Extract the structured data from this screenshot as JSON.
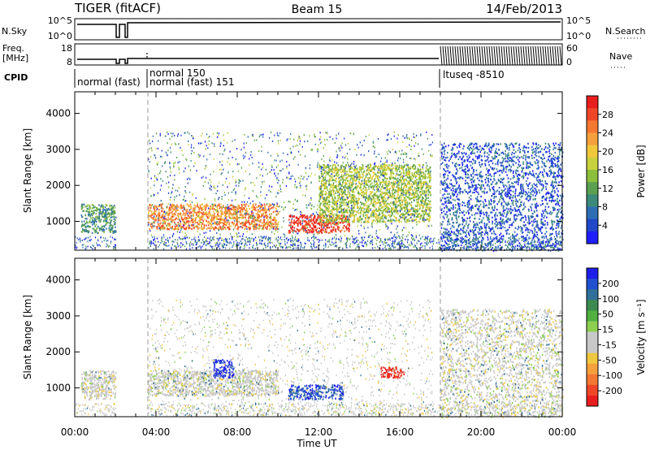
{
  "header": {
    "radar_name": "TIGER (fitACF)",
    "beam": "Beam 15",
    "date": "14/Feb/2013"
  },
  "strip_panels": {
    "left_labels": {
      "nsky": "N.Sky",
      "freq_line1": "Freq.",
      "freq_line2": "[MHz]",
      "cpid": "CPID"
    },
    "right_labels": {
      "nsearch": "N.Search",
      "nave": "Nave"
    },
    "noise_ticks_left": [
      "10^5",
      "10^0"
    ],
    "noise_ticks_right": [
      "10^5",
      "10^0"
    ],
    "freq_ticks": [
      "18",
      "8"
    ],
    "nave_ticks": [
      "60",
      "0"
    ],
    "cpid_labels": [
      "normal (fast)",
      "normal 150",
      "normal (fast) 151",
      "ltuseq -8510"
    ]
  },
  "time_axis": {
    "label": "Time UT",
    "ticks": [
      "00:00",
      "04:00",
      "08:00",
      "12:00",
      "16:00",
      "20:00",
      "00:00"
    ]
  },
  "colors": {
    "power_scale": [
      "#1e1eff",
      "#1f47c8",
      "#2e6eb4",
      "#3c8a7a",
      "#5aa050",
      "#8cbf3c",
      "#c8d23c",
      "#f0c83c",
      "#f5a03c",
      "#f57832",
      "#f04628",
      "#e81e1e"
    ],
    "velocity_scale": [
      "#1e1ee8",
      "#2050d0",
      "#30709a",
      "#3c8a50",
      "#50b040",
      "#8cd050",
      "#c8c8c8",
      "#c8c8c8",
      "#f0c840",
      "#f5a03c",
      "#f57832",
      "#f04628",
      "#e81e1e"
    ]
  },
  "chart_data": [
    {
      "type": "heatmap",
      "panel": "power",
      "title": "",
      "xlabel": "",
      "ylabel": "Slant Range [km]",
      "xlim": [
        "00:00",
        "24:00"
      ],
      "ylim": [
        200,
        4600
      ],
      "yticks": [
        "1000",
        "2000",
        "3000",
        "4000"
      ],
      "colorbar_label": "Power [dB]",
      "colorbar_ticks": [
        "4",
        "8",
        "12",
        "16",
        "20",
        "24",
        "28"
      ],
      "features": [
        {
          "t_start": 0.3,
          "t_end": 2.0,
          "range_min": 700,
          "range_max": 1500,
          "level": "low-mid"
        },
        {
          "t_start": 3.6,
          "t_end": 10.0,
          "range_min": 800,
          "range_max": 1500,
          "level": "high"
        },
        {
          "t_start": 10.5,
          "t_end": 13.5,
          "range_min": 700,
          "range_max": 1200,
          "level": "max"
        },
        {
          "t_start": 12.0,
          "t_end": 17.5,
          "range_min": 1000,
          "range_max": 2600,
          "level": "mid"
        },
        {
          "t_start": 18.0,
          "t_end": 24.0,
          "range_min": 200,
          "range_max": 3200,
          "level": "low"
        }
      ]
    },
    {
      "type": "heatmap",
      "panel": "velocity",
      "title": "",
      "xlabel": "Time UT",
      "ylabel": "Slant Range [km]",
      "xlim": [
        "00:00",
        "24:00"
      ],
      "ylim": [
        200,
        4600
      ],
      "yticks": [
        "1000",
        "2000",
        "3000",
        "4000"
      ],
      "colorbar_label": "Velocity [m s⁻¹]",
      "colorbar_ticks": [
        "200",
        "100",
        "50",
        "15",
        "-15",
        "-50",
        "-100",
        "-200"
      ],
      "features": [
        {
          "t_start": 0.3,
          "t_end": 2.0,
          "range_min": 700,
          "range_max": 1500,
          "velocity": "near-zero"
        },
        {
          "t_start": 3.6,
          "t_end": 10.0,
          "range_min": 800,
          "range_max": 1500,
          "velocity": "near-zero"
        },
        {
          "t_start": 6.8,
          "t_end": 7.8,
          "range_min": 1300,
          "range_max": 1800,
          "velocity": 200
        },
        {
          "t_start": 10.5,
          "t_end": 13.2,
          "range_min": 700,
          "range_max": 1100,
          "velocity": 150
        },
        {
          "t_start": 15.0,
          "t_end": 16.2,
          "range_min": 1300,
          "range_max": 1600,
          "velocity": -200
        },
        {
          "t_start": 18.0,
          "t_end": 24.0,
          "range_min": 200,
          "range_max": 3200,
          "velocity": "near-zero"
        }
      ]
    }
  ]
}
